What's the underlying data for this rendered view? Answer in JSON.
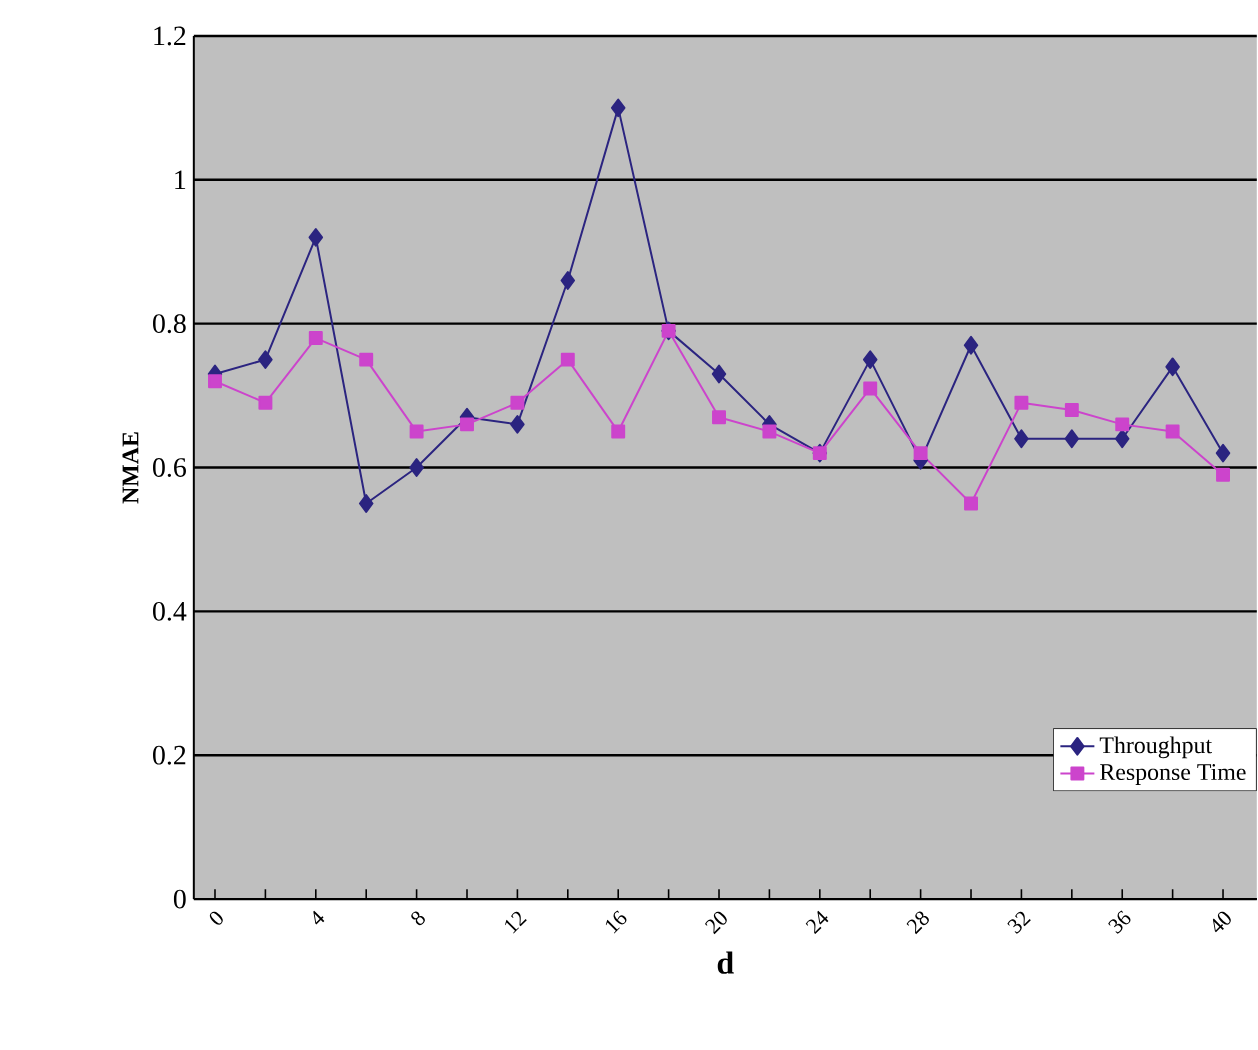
{
  "chart_data": {
    "type": "line",
    "xlabel": "d",
    "ylabel": "NMAE",
    "categories": [
      "0",
      null,
      "4",
      null,
      "8",
      null,
      "12",
      null,
      "16",
      null,
      "20",
      null,
      "24",
      null,
      "28",
      null,
      "32",
      null,
      "36",
      null,
      "40"
    ],
    "series": [
      {
        "name": "Throughput",
        "color": "#2b2480",
        "marker": "diamond",
        "values": [
          0.73,
          0.75,
          0.92,
          0.55,
          0.6,
          0.67,
          0.66,
          0.86,
          1.1,
          0.79,
          0.73,
          0.66,
          0.62,
          0.75,
          0.61,
          0.77,
          0.64,
          0.64,
          0.64,
          0.74,
          0.62
        ]
      },
      {
        "name": "Response Time",
        "color": "#cc44cc",
        "marker": "square",
        "values": [
          0.72,
          0.69,
          0.78,
          0.75,
          0.65,
          0.66,
          0.69,
          0.75,
          0.65,
          0.79,
          0.67,
          0.65,
          0.62,
          0.71,
          0.62,
          0.55,
          0.69,
          0.68,
          0.66,
          0.65,
          0.59
        ]
      }
    ],
    "ylim": [
      0,
      1.2
    ],
    "yticks": [
      0,
      0.2,
      0.4,
      0.6,
      0.8,
      1,
      1.2
    ],
    "grid": "y",
    "legend": "bottom right",
    "line_style": "solid"
  }
}
